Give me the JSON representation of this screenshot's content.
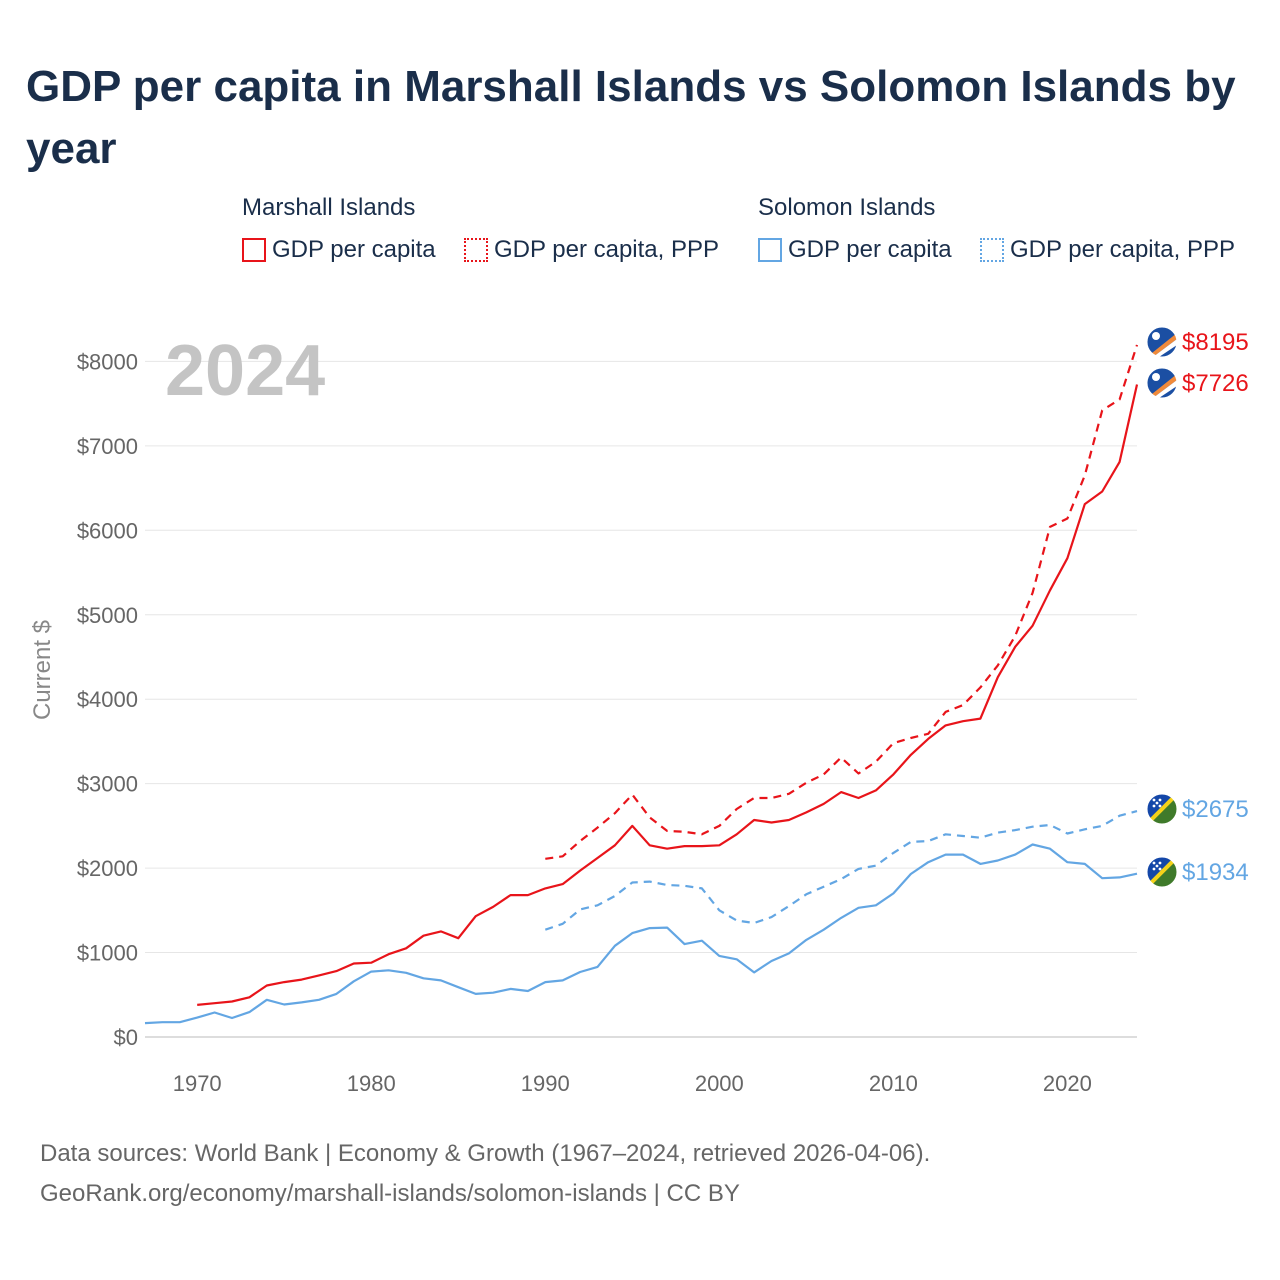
{
  "title": "GDP per capita in Marshall Islands vs Solomon Islands by year",
  "year_display": "2024",
  "legend": {
    "groups": [
      {
        "name": "Marshall Islands",
        "color": "#e8141a",
        "items": [
          {
            "label": "GDP per capita",
            "style": "solid"
          },
          {
            "label": "GDP per capita, PPP",
            "style": "dotted"
          }
        ]
      },
      {
        "name": "Solomon Islands",
        "color": "#63a6e3",
        "items": [
          {
            "label": "GDP per capita",
            "style": "solid"
          },
          {
            "label": "GDP per capita, PPP",
            "style": "dotted"
          }
        ]
      }
    ]
  },
  "chart_data": {
    "type": "line",
    "title": "GDP per capita in Marshall Islands vs Solomon Islands by year",
    "xlabel": "",
    "ylabel": "Current $",
    "xlim": [
      1967,
      2024
    ],
    "ylim": [
      0,
      8400
    ],
    "x_ticks": [
      1970,
      1980,
      1990,
      2000,
      2010,
      2020
    ],
    "y_ticks": [
      0,
      1000,
      2000,
      3000,
      4000,
      5000,
      6000,
      7000,
      8000
    ],
    "y_tick_labels": [
      "$0",
      "$1000",
      "$2000",
      "$3000",
      "$4000",
      "$5000",
      "$6000",
      "$7000",
      "$8000"
    ],
    "grid": true,
    "series": [
      {
        "name": "Marshall Islands GDP per capita, PPP",
        "color": "#e8141a",
        "dashed": true,
        "end_label": "$8195",
        "flag": "marshall",
        "x": [
          1990,
          1991,
          1992,
          1993,
          1994,
          1995,
          1996,
          1997,
          1998,
          1999,
          2000,
          2001,
          2002,
          2003,
          2004,
          2005,
          2006,
          2007,
          2008,
          2009,
          2010,
          2011,
          2012,
          2013,
          2014,
          2015,
          2016,
          2017,
          2018,
          2019,
          2020,
          2021,
          2022,
          2023,
          2024
        ],
        "values": [
          2110,
          2140,
          2320,
          2480,
          2650,
          2870,
          2600,
          2440,
          2430,
          2400,
          2500,
          2700,
          2830,
          2830,
          2880,
          3010,
          3110,
          3310,
          3120,
          3260,
          3480,
          3540,
          3590,
          3850,
          3930,
          4140,
          4400,
          4750,
          5260,
          6040,
          6140,
          6650,
          7420,
          7550,
          8195
        ]
      },
      {
        "name": "Marshall Islands GDP per capita",
        "color": "#e8141a",
        "dashed": false,
        "end_label": "$7726",
        "flag": "marshall",
        "x": [
          1970,
          1971,
          1972,
          1973,
          1974,
          1975,
          1976,
          1977,
          1978,
          1979,
          1980,
          1981,
          1982,
          1983,
          1984,
          1985,
          1986,
          1987,
          1988,
          1989,
          1990,
          1991,
          1992,
          1993,
          1994,
          1995,
          1996,
          1997,
          1998,
          1999,
          2000,
          2001,
          2002,
          2003,
          2004,
          2005,
          2006,
          2007,
          2008,
          2009,
          2010,
          2011,
          2012,
          2013,
          2014,
          2015,
          2016,
          2017,
          2018,
          2019,
          2020,
          2021,
          2022,
          2023,
          2024
        ],
        "values": [
          380,
          400,
          420,
          470,
          610,
          650,
          680,
          730,
          780,
          870,
          880,
          980,
          1050,
          1200,
          1250,
          1170,
          1430,
          1540,
          1680,
          1680,
          1760,
          1810,
          1970,
          2120,
          2270,
          2500,
          2270,
          2230,
          2260,
          2260,
          2270,
          2400,
          2570,
          2540,
          2570,
          2660,
          2760,
          2900,
          2830,
          2920,
          3110,
          3340,
          3530,
          3690,
          3740,
          3770,
          4260,
          4620,
          4870,
          5290,
          5670,
          6310,
          6460,
          6810,
          7726
        ]
      },
      {
        "name": "Solomon Islands GDP per capita, PPP",
        "color": "#63a6e3",
        "dashed": true,
        "end_label": "$2675",
        "flag": "solomon",
        "x": [
          1990,
          1991,
          1992,
          1993,
          1994,
          1995,
          1996,
          1997,
          1998,
          1999,
          2000,
          2001,
          2002,
          2003,
          2004,
          2005,
          2006,
          2007,
          2008,
          2009,
          2010,
          2011,
          2012,
          2013,
          2014,
          2015,
          2016,
          2017,
          2018,
          2019,
          2020,
          2021,
          2022,
          2023,
          2024
        ],
        "values": [
          1270,
          1340,
          1510,
          1560,
          1670,
          1830,
          1840,
          1800,
          1790,
          1760,
          1500,
          1380,
          1350,
          1420,
          1550,
          1690,
          1780,
          1870,
          1990,
          2030,
          2180,
          2310,
          2320,
          2400,
          2380,
          2360,
          2420,
          2450,
          2490,
          2510,
          2410,
          2460,
          2500,
          2620,
          2675
        ]
      },
      {
        "name": "Solomon Islands GDP per capita",
        "color": "#63a6e3",
        "dashed": false,
        "end_label": "$1934",
        "flag": "solomon",
        "x": [
          1967,
          1968,
          1969,
          1970,
          1971,
          1972,
          1973,
          1974,
          1975,
          1976,
          1977,
          1978,
          1979,
          1980,
          1981,
          1982,
          1983,
          1984,
          1985,
          1986,
          1987,
          1988,
          1989,
          1990,
          1991,
          1992,
          1993,
          1994,
          1995,
          1996,
          1997,
          1998,
          1999,
          2000,
          2001,
          2002,
          2003,
          2004,
          2005,
          2006,
          2007,
          2008,
          2009,
          2010,
          2011,
          2012,
          2013,
          2014,
          2015,
          2016,
          2017,
          2018,
          2019,
          2020,
          2021,
          2022,
          2023,
          2024
        ],
        "values": [
          165,
          175,
          175,
          230,
          290,
          225,
          295,
          440,
          385,
          410,
          440,
          510,
          660,
          775,
          790,
          760,
          695,
          670,
          590,
          510,
          525,
          570,
          545,
          650,
          670,
          770,
          830,
          1080,
          1230,
          1290,
          1295,
          1100,
          1140,
          960,
          920,
          765,
          900,
          990,
          1150,
          1270,
          1410,
          1530,
          1560,
          1700,
          1930,
          2070,
          2160,
          2160,
          2050,
          2090,
          2160,
          2280,
          2230,
          2070,
          2050,
          1880,
          1890,
          1934
        ]
      }
    ]
  },
  "source": {
    "line1": "Data sources: World Bank | Economy & Growth (1967–2024, retrieved 2026-04-06).",
    "line2": "GeoRank.org/economy/marshall-islands/solomon-islands | CC BY"
  }
}
